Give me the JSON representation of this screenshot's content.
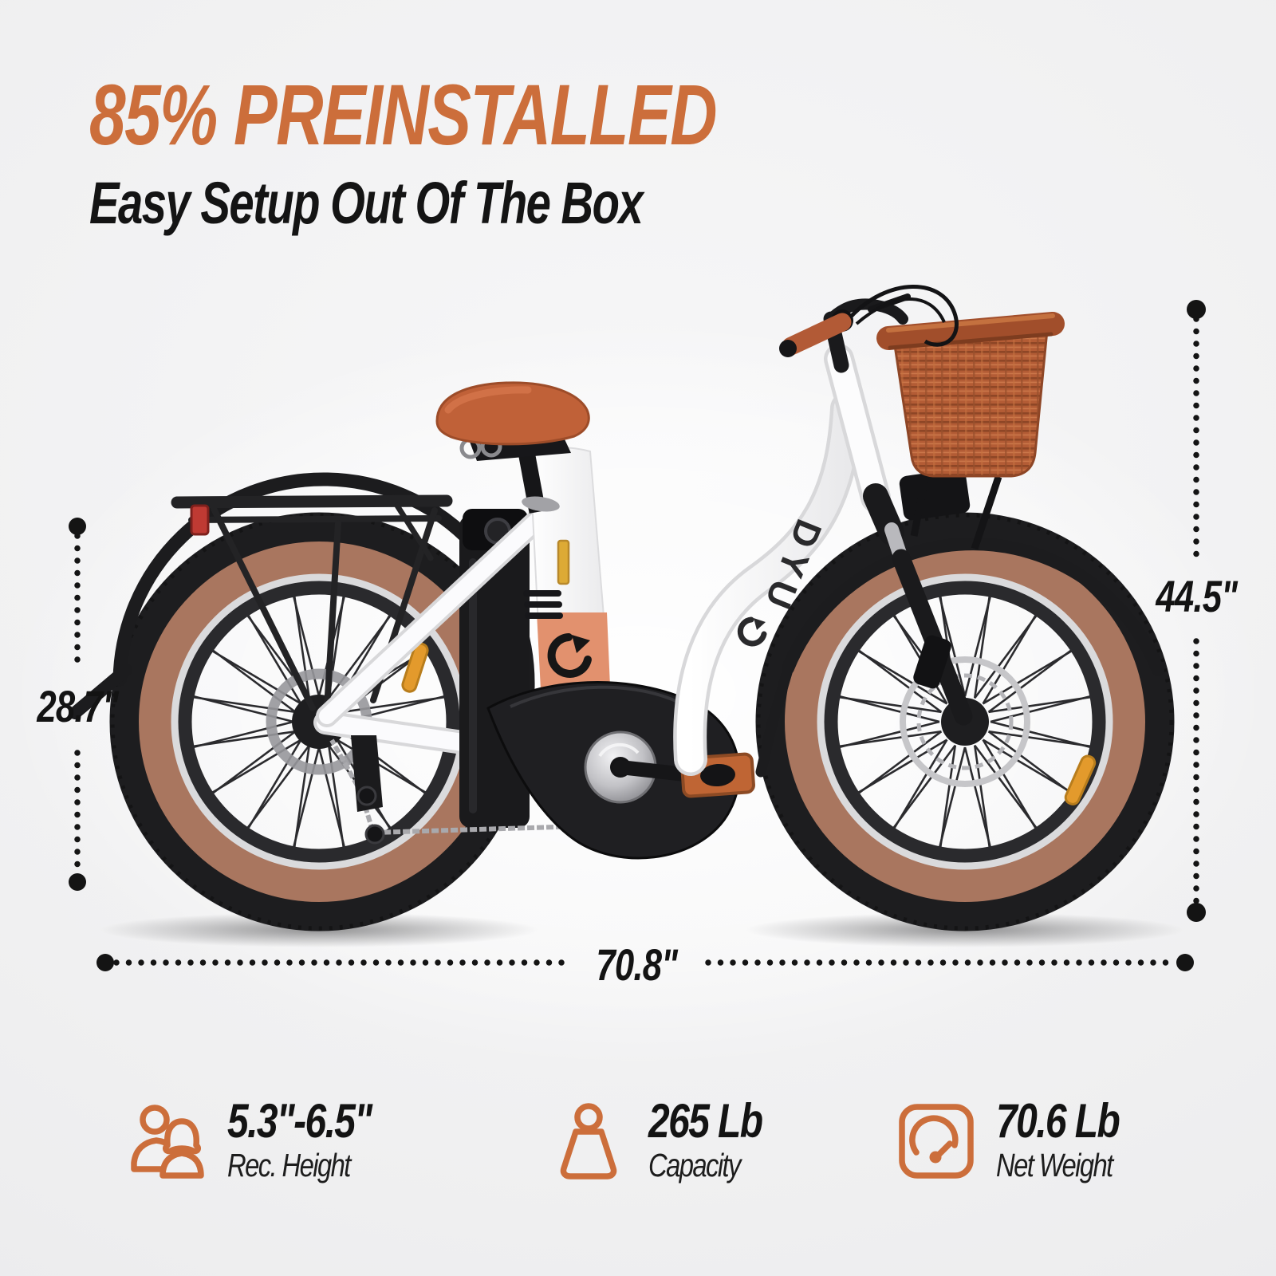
{
  "header": {
    "title": "85% PREINSTALLED",
    "subtitle": "Easy Setup Out Of The Box"
  },
  "dimensions": {
    "seat_height": "28.7\"",
    "overall_height": "44.5\"",
    "overall_length": "70.8\""
  },
  "bike": {
    "brand": "DYU"
  },
  "specs": [
    {
      "icon": "riders-icon",
      "value": "5.3\"-6.5\"",
      "label": "Rec. Height"
    },
    {
      "icon": "weight-icon",
      "value": "265 Lb",
      "label": "Capacity"
    },
    {
      "icon": "gauge-icon",
      "value": "70.6 Lb",
      "label": "Net Weight"
    }
  ],
  "colors": {
    "accent": "#CC6E3B",
    "terracotta": "#B55A33",
    "salmon": "#E2916E",
    "tire_tan": "#A9765F",
    "text": "#131313"
  }
}
